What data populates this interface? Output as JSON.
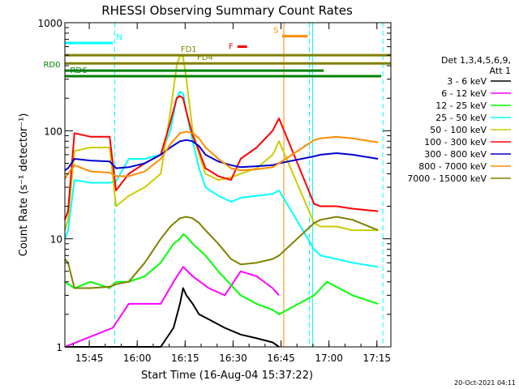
{
  "chart_data": {
    "type": "line",
    "title": "RHESSI Observing Summary Count Rates",
    "xlabel": "Start Time (16-Aug-04 15:37:22)",
    "ylabel": "Count Rate (s⁻¹ detector⁻¹)",
    "yscale": "log",
    "ylim": [
      1,
      1000
    ],
    "xlim_minutes": [
      0,
      102
    ],
    "x_ticks": [
      "15:45",
      "16:00",
      "16:15",
      "16:30",
      "16:45",
      "17:00",
      "17:15"
    ],
    "x_tick_minutes": [
      7.63,
      22.63,
      37.63,
      52.63,
      67.63,
      82.63,
      97.63
    ],
    "y_ticks": [
      "1",
      "10",
      "100",
      "1000"
    ],
    "y_tick_values": [
      1,
      10,
      100,
      1000
    ],
    "legend_header": [
      "Det 1,3,4,5,6,9,",
      "Att 1"
    ],
    "legend_position": "right",
    "flag_labels": [
      {
        "text": "N",
        "color": "#00ffff",
        "x0": 0,
        "x1": 15,
        "y": 650
      },
      {
        "text": "S",
        "color": "#ff8c00",
        "x0": 68,
        "x1": 76,
        "y": 750
      },
      {
        "text": "FD1",
        "color": "#808000",
        "x0": 0,
        "x1": 102,
        "y": 500
      },
      {
        "text": "F",
        "color": "#ff0000",
        "x0": 54,
        "x1": 57,
        "y": 600
      },
      {
        "text": "FD4",
        "color": "#808000",
        "x0": 0,
        "x1": 102,
        "y": 420
      },
      {
        "text": "RD0",
        "color": "#008000",
        "x0": 0,
        "x1": 81,
        "y": 360
      },
      {
        "text": "RD6",
        "color": "#008000",
        "x0": 0,
        "x1": 99,
        "y": 320
      }
    ],
    "attenuator_lines_minutes": [
      15.6,
      68.5,
      76.5,
      77.5,
      99.5
    ],
    "series": [
      {
        "name": "3 - 6 keV",
        "color": "#000000",
        "x": [
          0,
          20,
          30,
          34,
          36,
          37,
          38,
          40,
          42,
          45,
          50,
          55,
          60,
          65,
          67
        ],
        "values": [
          1,
          1,
          1,
          1.5,
          2.5,
          3.5,
          3.0,
          2.5,
          2.0,
          1.8,
          1.5,
          1.3,
          1.2,
          1.1,
          1.0
        ]
      },
      {
        "name": "6 - 12 keV",
        "color": "#ff00ff",
        "x": [
          0,
          15,
          20,
          25,
          30,
          34,
          37,
          40,
          45,
          50,
          55,
          60,
          65,
          67
        ],
        "values": [
          1,
          1.5,
          2.5,
          2.5,
          2.5,
          4.0,
          5.5,
          4.5,
          3.5,
          3.0,
          5.0,
          4.5,
          3.5,
          3.0
        ]
      },
      {
        "name": "12 - 25 keV",
        "color": "#00ff00",
        "x": [
          0,
          3,
          8,
          14,
          16,
          20,
          25,
          30,
          34,
          36,
          37,
          38,
          40,
          44,
          48,
          55,
          60,
          65,
          67,
          78,
          82,
          90,
          98
        ],
        "values": [
          4.0,
          3.5,
          4.0,
          3.5,
          4.0,
          4.0,
          4.5,
          6.0,
          9.0,
          10.0,
          11.0,
          10.5,
          9.0,
          7.0,
          5.0,
          3.0,
          2.5,
          2.2,
          2.0,
          3.0,
          4.0,
          3.0,
          2.5
        ]
      },
      {
        "name": "25 - 50 keV",
        "color": "#00ffff",
        "x": [
          0,
          1,
          3,
          8,
          14,
          16,
          20,
          25,
          30,
          33,
          35,
          36,
          37,
          38,
          40,
          42,
          44,
          48,
          52,
          55,
          60,
          65,
          67,
          78,
          80,
          85,
          90,
          98
        ],
        "values": [
          10,
          12,
          35,
          33,
          33,
          34,
          55,
          55,
          60,
          100,
          200,
          230,
          220,
          150,
          80,
          45,
          30,
          25,
          22,
          24,
          25,
          26,
          28,
          8,
          7,
          6.5,
          6.0,
          5.5
        ]
      },
      {
        "name": "50 - 100 keV",
        "color": "#cccc00",
        "x": [
          0,
          1,
          3,
          8,
          14,
          16,
          20,
          25,
          30,
          33,
          35,
          36,
          37,
          38,
          40,
          42,
          44,
          48,
          52,
          55,
          60,
          65,
          67,
          78,
          80,
          85,
          90,
          98
        ],
        "values": [
          12,
          15,
          65,
          70,
          70,
          20,
          25,
          30,
          40,
          150,
          400,
          500,
          480,
          300,
          100,
          60,
          40,
          35,
          37,
          40,
          45,
          60,
          80,
          14,
          13,
          13,
          12,
          12
        ]
      },
      {
        "name": "100 - 300 keV",
        "color": "#ff0000",
        "x": [
          0,
          1,
          3,
          8,
          14,
          16,
          20,
          25,
          30,
          33,
          35,
          36,
          37,
          38,
          40,
          42,
          44,
          48,
          52,
          55,
          60,
          65,
          67,
          78,
          80,
          85,
          90,
          98
        ],
        "values": [
          15,
          18,
          95,
          88,
          88,
          28,
          40,
          50,
          60,
          120,
          200,
          210,
          200,
          150,
          90,
          65,
          45,
          38,
          35,
          55,
          70,
          100,
          130,
          21,
          20,
          20,
          19,
          18
        ]
      },
      {
        "name": "300 - 800 keV",
        "color": "#0000cd",
        "x": [
          0,
          1,
          3,
          8,
          14,
          16,
          20,
          25,
          30,
          33,
          36,
          38,
          40,
          42,
          44,
          48,
          52,
          55,
          60,
          65,
          67,
          78,
          80,
          85,
          90,
          98
        ],
        "values": [
          43,
          45,
          55,
          53,
          52,
          45,
          46,
          50,
          60,
          70,
          80,
          82,
          80,
          72,
          60,
          52,
          48,
          46,
          47,
          48,
          50,
          58,
          60,
          62,
          60,
          55
        ]
      },
      {
        "name": "800 - 7000 keV",
        "color": "#ff8c00",
        "x": [
          0,
          1,
          3,
          8,
          14,
          16,
          20,
          25,
          30,
          33,
          36,
          38,
          40,
          42,
          44,
          48,
          52,
          55,
          60,
          65,
          67,
          78,
          80,
          85,
          90,
          98
        ],
        "values": [
          36,
          40,
          48,
          42,
          41,
          38,
          38,
          42,
          55,
          75,
          95,
          98,
          95,
          85,
          70,
          55,
          45,
          43,
          44,
          46,
          50,
          82,
          85,
          88,
          85,
          78
        ]
      },
      {
        "name": "7000 - 15000 keV",
        "color": "#808000",
        "x": [
          0,
          1,
          3,
          8,
          14,
          16,
          20,
          25,
          30,
          33,
          36,
          38,
          40,
          42,
          44,
          48,
          52,
          55,
          60,
          65,
          67,
          78,
          80,
          85,
          90,
          98
        ],
        "values": [
          6.5,
          6.0,
          3.5,
          3.5,
          3.6,
          3.8,
          4.0,
          6.0,
          10.0,
          13.0,
          15.5,
          16.0,
          15.5,
          14.0,
          12.0,
          9.0,
          6.5,
          5.8,
          6.0,
          6.5,
          7.0,
          14.0,
          15.0,
          16.0,
          15.0,
          12.0
        ]
      }
    ]
  },
  "timestamp": "20-Oct-2021 04:11"
}
